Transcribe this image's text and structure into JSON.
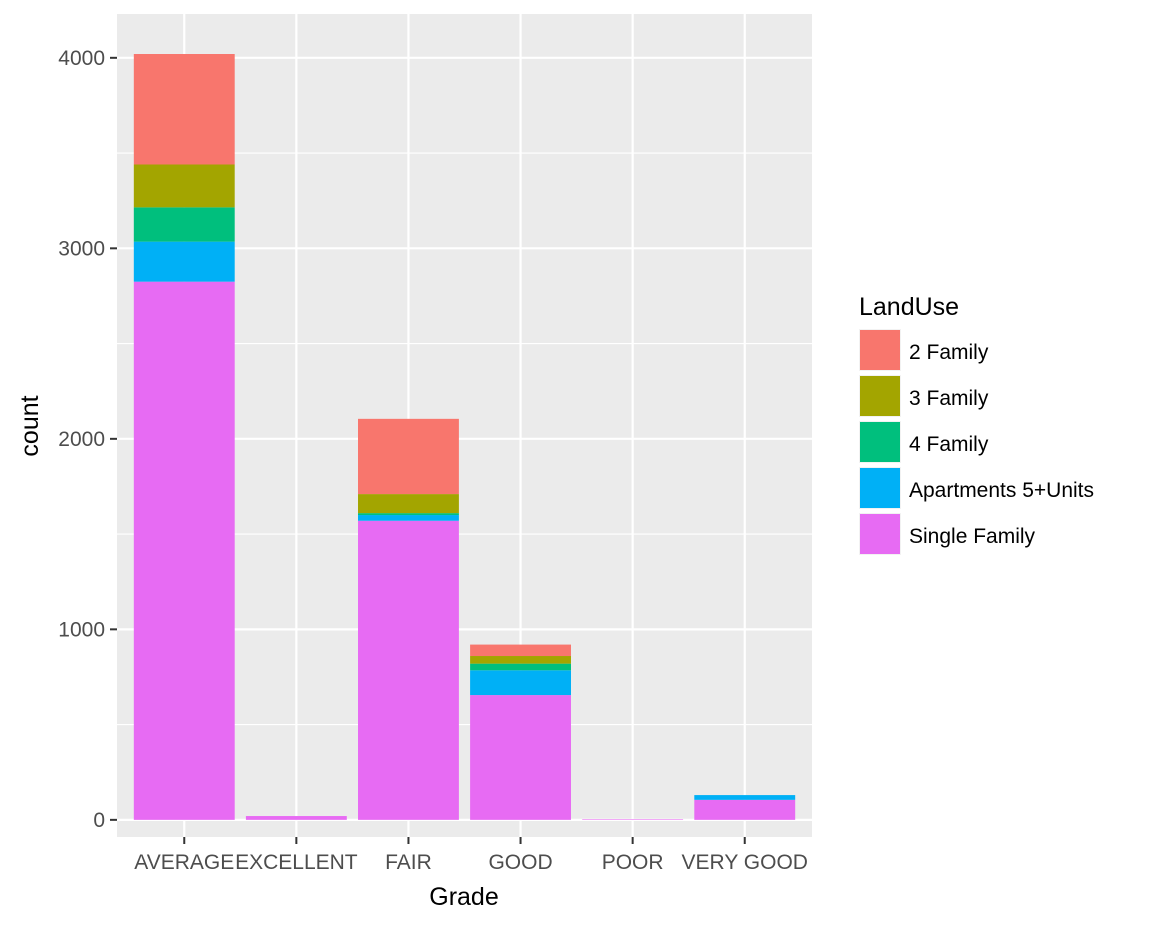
{
  "chart_data": {
    "type": "bar",
    "stacked": true,
    "xlabel": "Grade",
    "ylabel": "count",
    "categories": [
      "AVERAGE",
      "EXCELLENT",
      "FAIR",
      "GOOD",
      "POOR",
      "VERY GOOD"
    ],
    "ylim": [
      -90,
      4230
    ],
    "yticks": [
      0,
      1000,
      2000,
      3000,
      4000
    ],
    "legend_title": "LandUse",
    "legend_position": "right",
    "grid": true,
    "series": [
      {
        "name": "Single Family",
        "color": "#E76BF3",
        "values": [
          2825,
          20,
          1570,
          655,
          3,
          105
        ]
      },
      {
        "name": "Apartments 5+Units",
        "color": "#00B0F6",
        "values": [
          210,
          0,
          30,
          130,
          0,
          25
        ]
      },
      {
        "name": "4 Family",
        "color": "#00BF7D",
        "values": [
          180,
          0,
          10,
          35,
          0,
          0
        ]
      },
      {
        "name": "3 Family",
        "color": "#A3A500",
        "values": [
          225,
          0,
          100,
          40,
          0,
          0
        ]
      },
      {
        "name": "2 Family",
        "color": "#F8766D",
        "values": [
          580,
          0,
          395,
          60,
          0,
          0
        ]
      }
    ],
    "legend_order": [
      "2 Family",
      "3 Family",
      "4 Family",
      "Apartments 5+Units",
      "Single Family"
    ],
    "panel_background": "#EBEBEB",
    "grid_color": "#FFFFFF"
  }
}
